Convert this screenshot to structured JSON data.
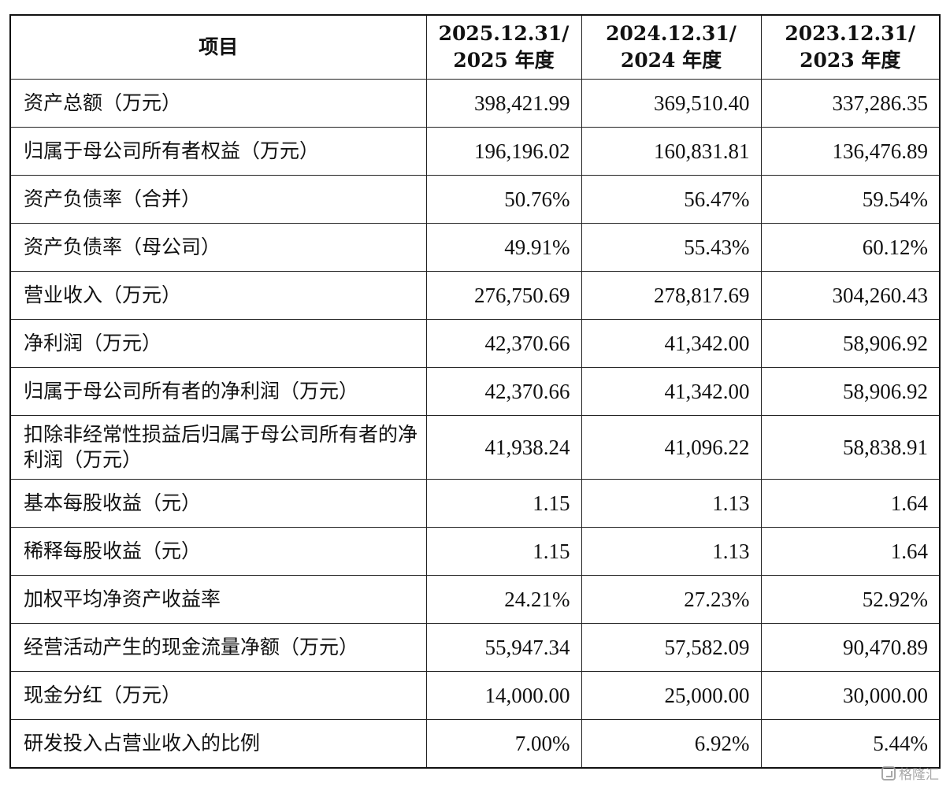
{
  "table": {
    "headers": [
      {
        "line1": "项目",
        "line2": ""
      },
      {
        "line1": "2025.12.31/",
        "line2": "2025 年度"
      },
      {
        "line1": "2024.12.31/",
        "line2": "2024 年度"
      },
      {
        "line1": "2023.12.31/",
        "line2": "2023 年度"
      }
    ],
    "rows": [
      {
        "label": "资产总额（万元）",
        "v2025": "398,421.99",
        "v2024": "369,510.40",
        "v2023": "337,286.35"
      },
      {
        "label": "归属于母公司所有者权益（万元）",
        "v2025": "196,196.02",
        "v2024": "160,831.81",
        "v2023": "136,476.89"
      },
      {
        "label": "资产负债率（合并）",
        "v2025": "50.76%",
        "v2024": "56.47%",
        "v2023": "59.54%"
      },
      {
        "label": "资产负债率（母公司）",
        "v2025": "49.91%",
        "v2024": "55.43%",
        "v2023": "60.12%"
      },
      {
        "label": "营业收入（万元）",
        "v2025": "276,750.69",
        "v2024": "278,817.69",
        "v2023": "304,260.43"
      },
      {
        "label": "净利润（万元）",
        "v2025": "42,370.66",
        "v2024": "41,342.00",
        "v2023": "58,906.92"
      },
      {
        "label": "归属于母公司所有者的净利润（万元）",
        "v2025": "42,370.66",
        "v2024": "41,342.00",
        "v2023": "58,906.92"
      },
      {
        "label": "扣除非经常性损益后归属于母公司所有者的净利润（万元）",
        "v2025": "41,938.24",
        "v2024": "41,096.22",
        "v2023": "58,838.91"
      },
      {
        "label": "基本每股收益（元）",
        "v2025": "1.15",
        "v2024": "1.13",
        "v2023": "1.64"
      },
      {
        "label": "稀释每股收益（元）",
        "v2025": "1.15",
        "v2024": "1.13",
        "v2023": "1.64"
      },
      {
        "label": "加权平均净资产收益率",
        "v2025": "24.21%",
        "v2024": "27.23%",
        "v2023": "52.92%"
      },
      {
        "label": "经营活动产生的现金流量净额（万元）",
        "v2025": "55,947.34",
        "v2024": "57,582.09",
        "v2023": "90,470.89"
      },
      {
        "label": "现金分红（万元）",
        "v2025": "14,000.00",
        "v2024": "25,000.00",
        "v2023": "30,000.00"
      },
      {
        "label": "研发投入占营业收入的比例",
        "v2025": "7.00%",
        "v2024": "6.92%",
        "v2023": "5.44%"
      }
    ]
  },
  "watermark": {
    "text": "格隆汇",
    "icon": "gelonghui-logo-icon"
  }
}
